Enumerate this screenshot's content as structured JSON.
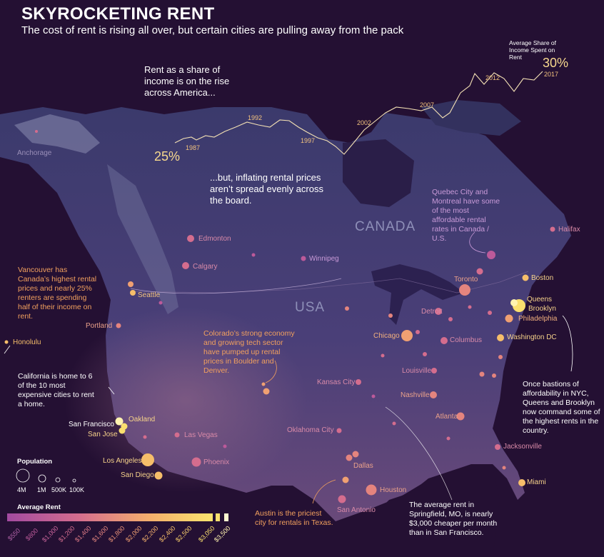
{
  "header": {
    "title": "SKYROCKETING RENT",
    "subtitle": "The cost of rent is rising all over, but certain cities are pulling away from the pack"
  },
  "notes": {
    "rise": "Rent as a share of income is on the rise across America...",
    "uneven": "...but, inflating rental prices aren’t spread evenly across the board."
  },
  "share_chart": {
    "caption": "Average Share of Income Spent on Rent",
    "start_value": "25%",
    "end_value": "30%",
    "years": [
      "1987",
      "1992",
      "1997",
      "2002",
      "2007",
      "2012",
      "2017"
    ],
    "colors": {
      "line": "#f3e0b4"
    }
  },
  "countries": {
    "canada": "CANADA",
    "usa": "USA"
  },
  "annotations": {
    "vancouver": "Vancouver has Canada’s highest rental prices and nearly 25% renters are spending half of their income on rent.",
    "california": "California is home to 6 of the 10 most expensive cities to rent a home.",
    "colorado": "Colorado’s strong economy and growing tech sector have pumped up rental prices in Boulder and Denver.",
    "quebec": "Quebec City and Montreal have some of the most affordable rental rates in Canada / U.S.",
    "nyc": "Once bastions of affordability in NYC, Queens and Brooklyn now command some of the highest rents in the country.",
    "austin": "Austin is the priciest city for rentals in Texas.",
    "springfield": "The average rent in Springfield, MO, is nearly $3,000 cheaper per month than in San Francisco."
  },
  "city_labels": {
    "anchorage": "Anchorage",
    "honolulu": "Honolulu",
    "edmonton": "Edmonton",
    "calgary": "Calgary",
    "winnipeg": "Winnipeg",
    "seattle": "Seattle",
    "portland": "Portland",
    "san_francisco": "San Francisco",
    "oakland": "Oakland",
    "san_jose": "San Jose",
    "los_angeles": "Los Angeles",
    "san_diego": "San Diego",
    "las_vegas": "Las Vegas",
    "phoenix": "Phoenix",
    "kansas_city": "Kansas City",
    "oklahoma_city": "Oklahoma City",
    "dallas": "Dallas",
    "houston": "Houston",
    "san_antonio": "San Antonio",
    "chicago": "Chicago",
    "detroit": "Detroit",
    "toronto": "Toronto",
    "columbus": "Columbus",
    "louisville": "Louisville",
    "nashville": "Nashville",
    "atlanta": "Atlanta",
    "jacksonville": "Jacksonville",
    "miami": "Miami",
    "washington_dc": "Washington DC",
    "philadelphia": "Philadelphia",
    "brooklyn": "Brooklyn",
    "queens": "Queens",
    "boston": "Boston",
    "halifax": "Halifax"
  },
  "legend": {
    "population_title": "Population",
    "population_sizes": [
      "4M",
      "1M",
      "500K",
      "100K"
    ],
    "rent_title": "Average Rent",
    "rent_ticks": [
      "$550",
      "$800",
      "$1,000",
      "$1,200",
      "$1,400",
      "$1,600",
      "$1,800",
      "$2,000",
      "$2,200",
      "$2,400",
      "$2,500",
      "$3,050",
      "$3,500"
    ],
    "rent_colors": [
      "#a24aa0",
      "#bc5a9a",
      "#d46d8e",
      "#e4847e",
      "#f0a072",
      "#f6be6a",
      "#fae06e",
      "#fff3b0"
    ]
  }
}
